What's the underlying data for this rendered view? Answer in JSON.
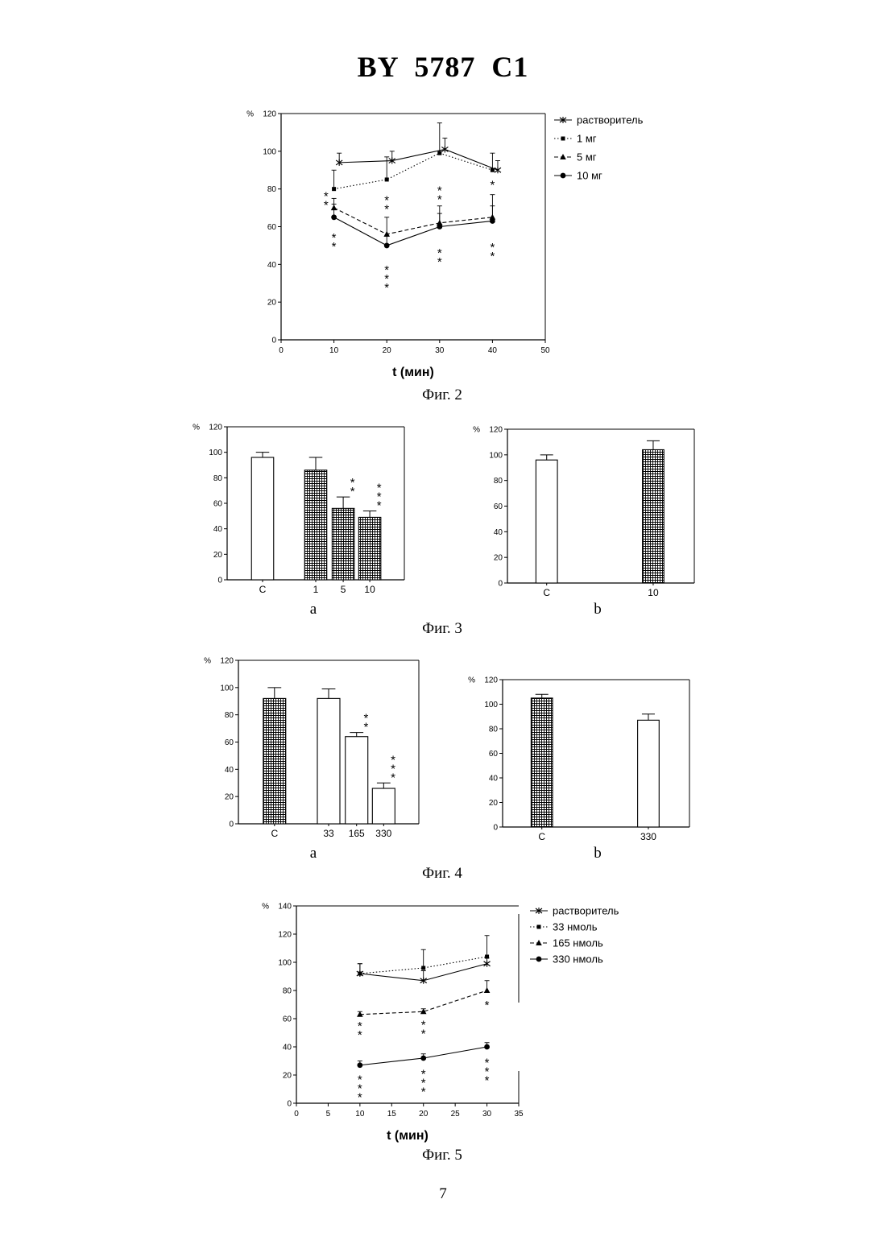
{
  "header": {
    "title": "BY 5787 C1"
  },
  "page_number": "7",
  "chart_data": [
    {
      "id": "fig2",
      "type": "line",
      "caption": "Фиг. 2",
      "ylabel": "%",
      "xlabel": "t (мин)",
      "xlim": [
        0,
        50
      ],
      "ylim": [
        0,
        120
      ],
      "xticks": [
        0,
        10,
        20,
        30,
        40,
        50
      ],
      "yticks": [
        0,
        20,
        40,
        60,
        80,
        100,
        120
      ],
      "legend_position": "right",
      "series": [
        {
          "name": "растворитель",
          "marker": "star",
          "dash": "solid",
          "x": [
            11,
            21,
            31,
            41
          ],
          "y": [
            94,
            95,
            101,
            90
          ],
          "err": [
            5,
            5,
            6,
            5
          ]
        },
        {
          "name": "1 мг",
          "marker": "square",
          "dash": "dotted",
          "x": [
            10,
            20,
            30,
            40
          ],
          "y": [
            80,
            85,
            99,
            90
          ],
          "err": [
            10,
            12,
            16,
            9
          ]
        },
        {
          "name": "5 мг",
          "marker": "triangle",
          "dash": "dashed",
          "x": [
            10,
            20,
            30,
            40
          ],
          "y": [
            70,
            56,
            62,
            65
          ],
          "err": [
            5,
            9,
            9,
            12
          ]
        },
        {
          "name": "10 мг",
          "marker": "circle",
          "dash": "solid",
          "x": [
            10,
            20,
            30,
            40
          ],
          "y": [
            65,
            50,
            60,
            63
          ],
          "err": [
            7,
            5,
            7,
            8
          ]
        }
      ],
      "annotations": [
        {
          "x": 8.5,
          "y": 74,
          "text": "**"
        },
        {
          "x": 10,
          "y": 52,
          "text": "**"
        },
        {
          "x": 20,
          "y": 72,
          "text": "**"
        },
        {
          "x": 20,
          "y": 35,
          "text": "***"
        },
        {
          "x": 30,
          "y": 77,
          "text": "**"
        },
        {
          "x": 30,
          "y": 44,
          "text": "**"
        },
        {
          "x": 40,
          "y": 80,
          "text": "*"
        },
        {
          "x": 40,
          "y": 47,
          "text": "**"
        }
      ]
    },
    {
      "id": "fig3a",
      "type": "bar",
      "caption": "Фиг. 3",
      "panel_label": "a",
      "ylabel": "%",
      "ylim": [
        0,
        120
      ],
      "yticks": [
        0,
        20,
        40,
        60,
        80,
        100,
        120
      ],
      "categories": [
        "С",
        "1",
        "5",
        "10"
      ],
      "values": [
        96,
        86,
        56,
        49
      ],
      "err": [
        4,
        10,
        9,
        5
      ],
      "fill": [
        "open",
        "hatched",
        "hatched",
        "hatched"
      ],
      "stars": [
        "",
        "",
        "**",
        "***"
      ]
    },
    {
      "id": "fig3b",
      "type": "bar",
      "panel_label": "b",
      "ylabel": "%",
      "ylim": [
        0,
        120
      ],
      "yticks": [
        0,
        20,
        40,
        60,
        80,
        100,
        120
      ],
      "categories": [
        "С",
        "10"
      ],
      "values": [
        96,
        104
      ],
      "err": [
        4,
        7
      ],
      "fill": [
        "open",
        "hatched"
      ],
      "stars": [
        "",
        ""
      ]
    },
    {
      "id": "fig4a",
      "type": "bar",
      "caption": "Фиг. 4",
      "panel_label": "a",
      "ylabel": "%",
      "ylim": [
        0,
        120
      ],
      "yticks": [
        0,
        20,
        40,
        60,
        80,
        100,
        120
      ],
      "categories": [
        "С",
        "33",
        "165",
        "330"
      ],
      "values": [
        92,
        92,
        64,
        26
      ],
      "err": [
        8,
        7,
        3,
        4
      ],
      "fill": [
        "hatched",
        "open",
        "open",
        "open"
      ],
      "stars": [
        "",
        "",
        "**",
        "***"
      ]
    },
    {
      "id": "fig4b",
      "type": "bar",
      "panel_label": "b",
      "ylabel": "%",
      "ylim": [
        0,
        120
      ],
      "yticks": [
        0,
        20,
        40,
        60,
        80,
        100,
        120
      ],
      "categories": [
        "С",
        "330"
      ],
      "values": [
        105,
        87
      ],
      "err": [
        3,
        5
      ],
      "fill": [
        "hatched",
        "open"
      ],
      "stars": [
        "",
        ""
      ]
    },
    {
      "id": "fig5",
      "type": "line",
      "caption": "Фиг. 5",
      "ylabel": "%",
      "xlabel": "t (мин)",
      "xlim": [
        0,
        35
      ],
      "ylim": [
        0,
        140
      ],
      "xticks": [
        0,
        5,
        10,
        15,
        20,
        25,
        30,
        35
      ],
      "yticks": [
        0,
        20,
        40,
        60,
        80,
        100,
        120,
        140
      ],
      "legend_position": "right",
      "series": [
        {
          "name": "растворитель",
          "marker": "star",
          "dash": "solid",
          "x": [
            10,
            20,
            30
          ],
          "y": [
            92,
            87,
            99
          ],
          "err": [
            7,
            7,
            4
          ]
        },
        {
          "name": "33  нмоль",
          "marker": "square",
          "dash": "dotted",
          "x": [
            10,
            20,
            30
          ],
          "y": [
            92,
            96,
            104
          ],
          "err": [
            7,
            13,
            15
          ]
        },
        {
          "name": "165  нмоль",
          "marker": "triangle",
          "dash": "dashed",
          "x": [
            10,
            20,
            30
          ],
          "y": [
            63,
            65,
            80
          ],
          "err": [
            2,
            2,
            7
          ]
        },
        {
          "name": "330 нмоль",
          "marker": "circle",
          "dash": "solid",
          "x": [
            10,
            20,
            30
          ],
          "y": [
            27,
            32,
            40
          ],
          "err": [
            3,
            3,
            3
          ]
        }
      ],
      "annotations": [
        {
          "x": 10,
          "y": 52,
          "text": "**"
        },
        {
          "x": 20,
          "y": 53,
          "text": "**"
        },
        {
          "x": 30,
          "y": 67,
          "text": "*"
        },
        {
          "x": 10,
          "y": 14,
          "text": "***"
        },
        {
          "x": 20,
          "y": 18,
          "text": "***"
        },
        {
          "x": 30,
          "y": 26,
          "text": "***"
        }
      ]
    }
  ]
}
